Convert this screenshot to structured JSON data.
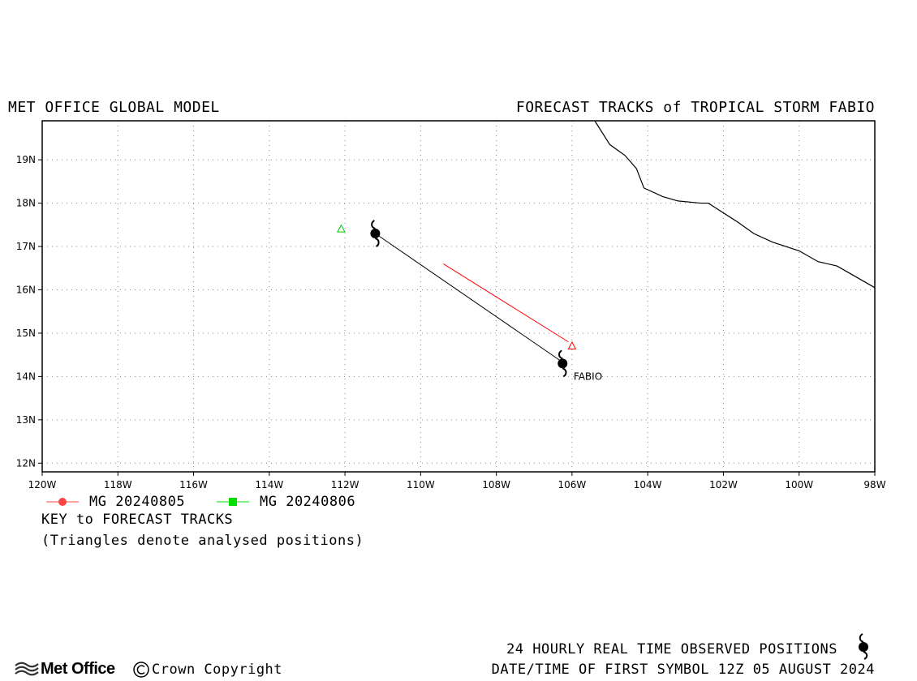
{
  "header": {
    "left_title": "MET OFFICE GLOBAL MODEL",
    "right_title": "FORECAST TRACKS of TROPICAL STORM FABIO"
  },
  "map": {
    "lon_range": [
      -120,
      -98
    ],
    "lat_range": [
      11.8,
      19.9
    ],
    "x_tick_labels": [
      "120W",
      "118W",
      "116W",
      "114W",
      "112W",
      "110W",
      "108W",
      "106W",
      "104W",
      "102W",
      "100W",
      "98W"
    ],
    "x_tick_values": [
      -120,
      -118,
      -116,
      -114,
      -112,
      -110,
      -108,
      -106,
      -104,
      -102,
      -100,
      -98
    ],
    "y_tick_labels": [
      "12N",
      "13N",
      "14N",
      "15N",
      "16N",
      "17N",
      "18N",
      "19N"
    ],
    "y_tick_values": [
      12,
      13,
      14,
      15,
      16,
      17,
      18,
      19
    ],
    "grid": true,
    "coastline": [
      [
        -105.4,
        19.9
      ],
      [
        -105.0,
        19.35
      ],
      [
        -104.6,
        19.1
      ],
      [
        -104.3,
        18.8
      ],
      [
        -104.1,
        18.35
      ],
      [
        -103.6,
        18.15
      ],
      [
        -103.2,
        18.05
      ],
      [
        -102.6,
        18.0
      ],
      [
        -102.4,
        18.0
      ],
      [
        -101.6,
        17.55
      ],
      [
        -101.2,
        17.3
      ],
      [
        -100.7,
        17.1
      ],
      [
        -100.0,
        16.9
      ],
      [
        -99.5,
        16.65
      ],
      [
        -99.0,
        16.55
      ],
      [
        -98.5,
        16.3
      ],
      [
        -98.0,
        16.05
      ]
    ],
    "tracks": [
      {
        "label": "MG 20240805",
        "color": "#ff0000",
        "points": [
          [
            -109.4,
            16.6
          ],
          [
            -106.1,
            14.8
          ]
        ]
      },
      {
        "label": "MG 20240806",
        "color": "#000000",
        "points": [
          [
            -111.2,
            17.3
          ],
          [
            -106.2,
            14.3
          ]
        ]
      }
    ],
    "analysed_positions": [
      {
        "color": "#ff0000",
        "lon": -106.0,
        "lat": 14.7
      },
      {
        "color": "#00cc00",
        "lon": -112.1,
        "lat": 17.4
      }
    ],
    "observed_positions": [
      {
        "lon": -111.2,
        "lat": 17.3
      },
      {
        "lon": -106.25,
        "lat": 14.3
      }
    ],
    "storm_label": {
      "text": "FABIO",
      "lon": -106.0,
      "lat": 14.0
    }
  },
  "legend": {
    "items": [
      {
        "label": "MG 20240805",
        "color": "#ff4444",
        "marker": "circle"
      },
      {
        "label": "MG 20240806",
        "color": "#00dd00",
        "marker": "square"
      }
    ],
    "key_title": "KEY to FORECAST TRACKS",
    "key_note": "(Triangles denote analysed positions)"
  },
  "footer": {
    "observed_text": "24 HOURLY REAL TIME OBSERVED POSITIONS",
    "datetime_text": "DATE/TIME OF FIRST SYMBOL 12Z 05 AUGUST 2024",
    "logo_text": "Met Office",
    "copyright_text": "Crown Copyright"
  }
}
